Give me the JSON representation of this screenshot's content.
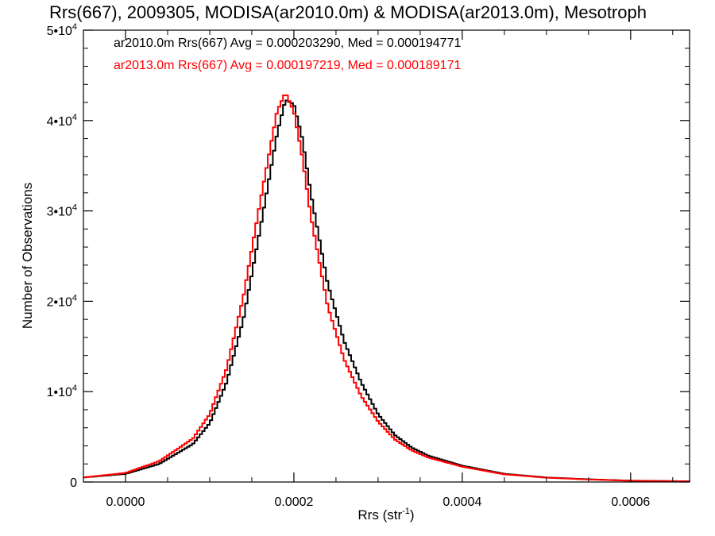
{
  "chart_data": {
    "type": "histogram",
    "title": "Rrs(667), 2009305, MODISA(ar2010.0m) & MODISA(ar2013.0m), Mesotroph",
    "xlabel": "Rrs (str",
    "xlabel_sup": "-1",
    "xlabel_close": ")",
    "ylabel": "Number of Observations",
    "xlim": [
      -5e-05,
      0.00067
    ],
    "ylim": [
      0,
      50000
    ],
    "x_ticks": [
      {
        "value": 0.0,
        "label": "0.0000"
      },
      {
        "value": 0.0002,
        "label": "0.0002"
      },
      {
        "value": 0.0004,
        "label": "0.0004"
      },
      {
        "value": 0.0006,
        "label": "0.0006"
      }
    ],
    "y_ticks": [
      {
        "value": 0,
        "base": "0",
        "sup": ""
      },
      {
        "value": 10000,
        "base": "1•10",
        "sup": "4"
      },
      {
        "value": 20000,
        "base": "2•10",
        "sup": "4"
      },
      {
        "value": 30000,
        "base": "3•10",
        "sup": "4"
      },
      {
        "value": 40000,
        "base": "4•10",
        "sup": "4"
      },
      {
        "value": 50000,
        "base": "5•10",
        "sup": "4"
      }
    ],
    "legend_position": "top-left",
    "series": [
      {
        "name": "ar2010.0m",
        "label": "ar2010.0m Rrs(667) Avg = 0.000203290, Med = 0.000194771",
        "color": "#000000",
        "average": 0.00020329,
        "median": 0.000194771,
        "peak_count": 42800,
        "profile": [
          [
            -5e-05,
            500
          ],
          [
            0,
            900
          ],
          [
            4e-05,
            2000
          ],
          [
            8e-05,
            4200
          ],
          [
            0.0001,
            6500
          ],
          [
            0.00012,
            11000
          ],
          [
            0.00014,
            18000
          ],
          [
            0.00016,
            28000
          ],
          [
            0.00018,
            38500
          ],
          [
            0.00019,
            42300
          ],
          [
            0.0002,
            41800
          ],
          [
            0.00021,
            38000
          ],
          [
            0.00022,
            32000
          ],
          [
            0.00024,
            22000
          ],
          [
            0.00026,
            15500
          ],
          [
            0.00028,
            11000
          ],
          [
            0.0003,
            7500
          ],
          [
            0.00032,
            5200
          ],
          [
            0.00034,
            3800
          ],
          [
            0.00036,
            2900
          ],
          [
            0.0004,
            1800
          ],
          [
            0.00045,
            900
          ],
          [
            0.0005,
            500
          ],
          [
            0.00055,
            300
          ],
          [
            0.0006,
            150
          ],
          [
            0.00067,
            80
          ]
        ]
      },
      {
        "name": "ar2013.0m",
        "label": "ar2013.0m Rrs(667) Avg = 0.000197219, Med = 0.000189171",
        "color": "#ff0000",
        "average": 0.000197219,
        "median": 0.000189171,
        "peak_count": 43200,
        "profile": [
          [
            -5e-05,
            500
          ],
          [
            0,
            1000
          ],
          [
            4e-05,
            2300
          ],
          [
            8e-05,
            4800
          ],
          [
            0.0001,
            7500
          ],
          [
            0.00012,
            12500
          ],
          [
            0.00014,
            20500
          ],
          [
            0.00016,
            31000
          ],
          [
            0.00018,
            41000
          ],
          [
            0.00019,
            43100
          ],
          [
            0.0002,
            41000
          ],
          [
            0.00021,
            36000
          ],
          [
            0.00022,
            29500
          ],
          [
            0.00024,
            19500
          ],
          [
            0.00026,
            13500
          ],
          [
            0.00028,
            9500
          ],
          [
            0.0003,
            6700
          ],
          [
            0.00032,
            4700
          ],
          [
            0.00034,
            3500
          ],
          [
            0.00036,
            2700
          ],
          [
            0.0004,
            1700
          ],
          [
            0.00045,
            850
          ],
          [
            0.0005,
            480
          ],
          [
            0.00055,
            280
          ],
          [
            0.0006,
            140
          ],
          [
            0.00067,
            70
          ]
        ]
      }
    ]
  }
}
